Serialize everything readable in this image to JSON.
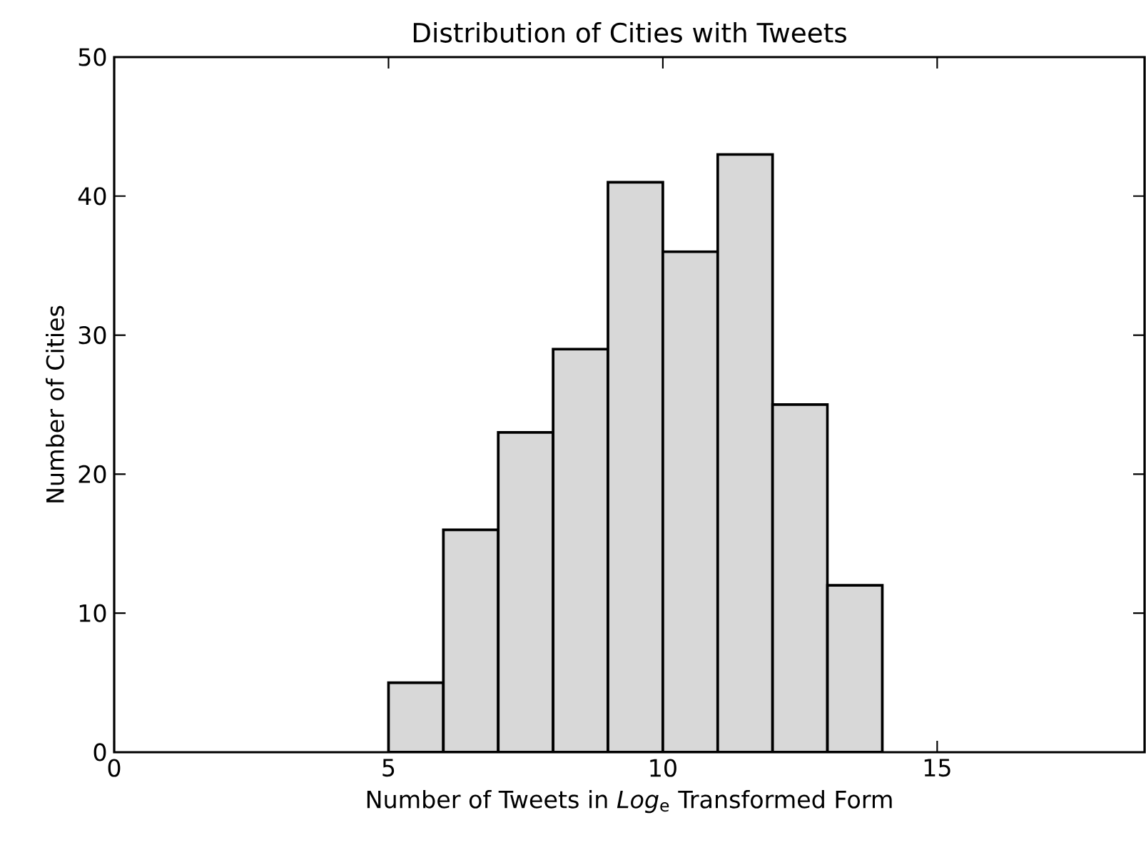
{
  "chart_data": {
    "type": "histogram",
    "title": "Distribution of Cities with Tweets",
    "xlabel": "Number of Tweets in *Log*$_{e}$ Transformed Form",
    "ylabel": "Number of Cities",
    "bins": [
      5,
      6,
      7,
      8,
      9,
      10,
      11,
      12,
      13,
      14
    ],
    "values": [
      5,
      16,
      23,
      29,
      41,
      36,
      43,
      25,
      12
    ],
    "color": "#d8d8d8",
    "xlim": [
      0,
      18.78
    ],
    "ylim": [
      0,
      50
    ],
    "xticks": [
      0,
      5,
      10,
      15
    ],
    "yticks": [
      0,
      10,
      20,
      30,
      40,
      50
    ]
  }
}
